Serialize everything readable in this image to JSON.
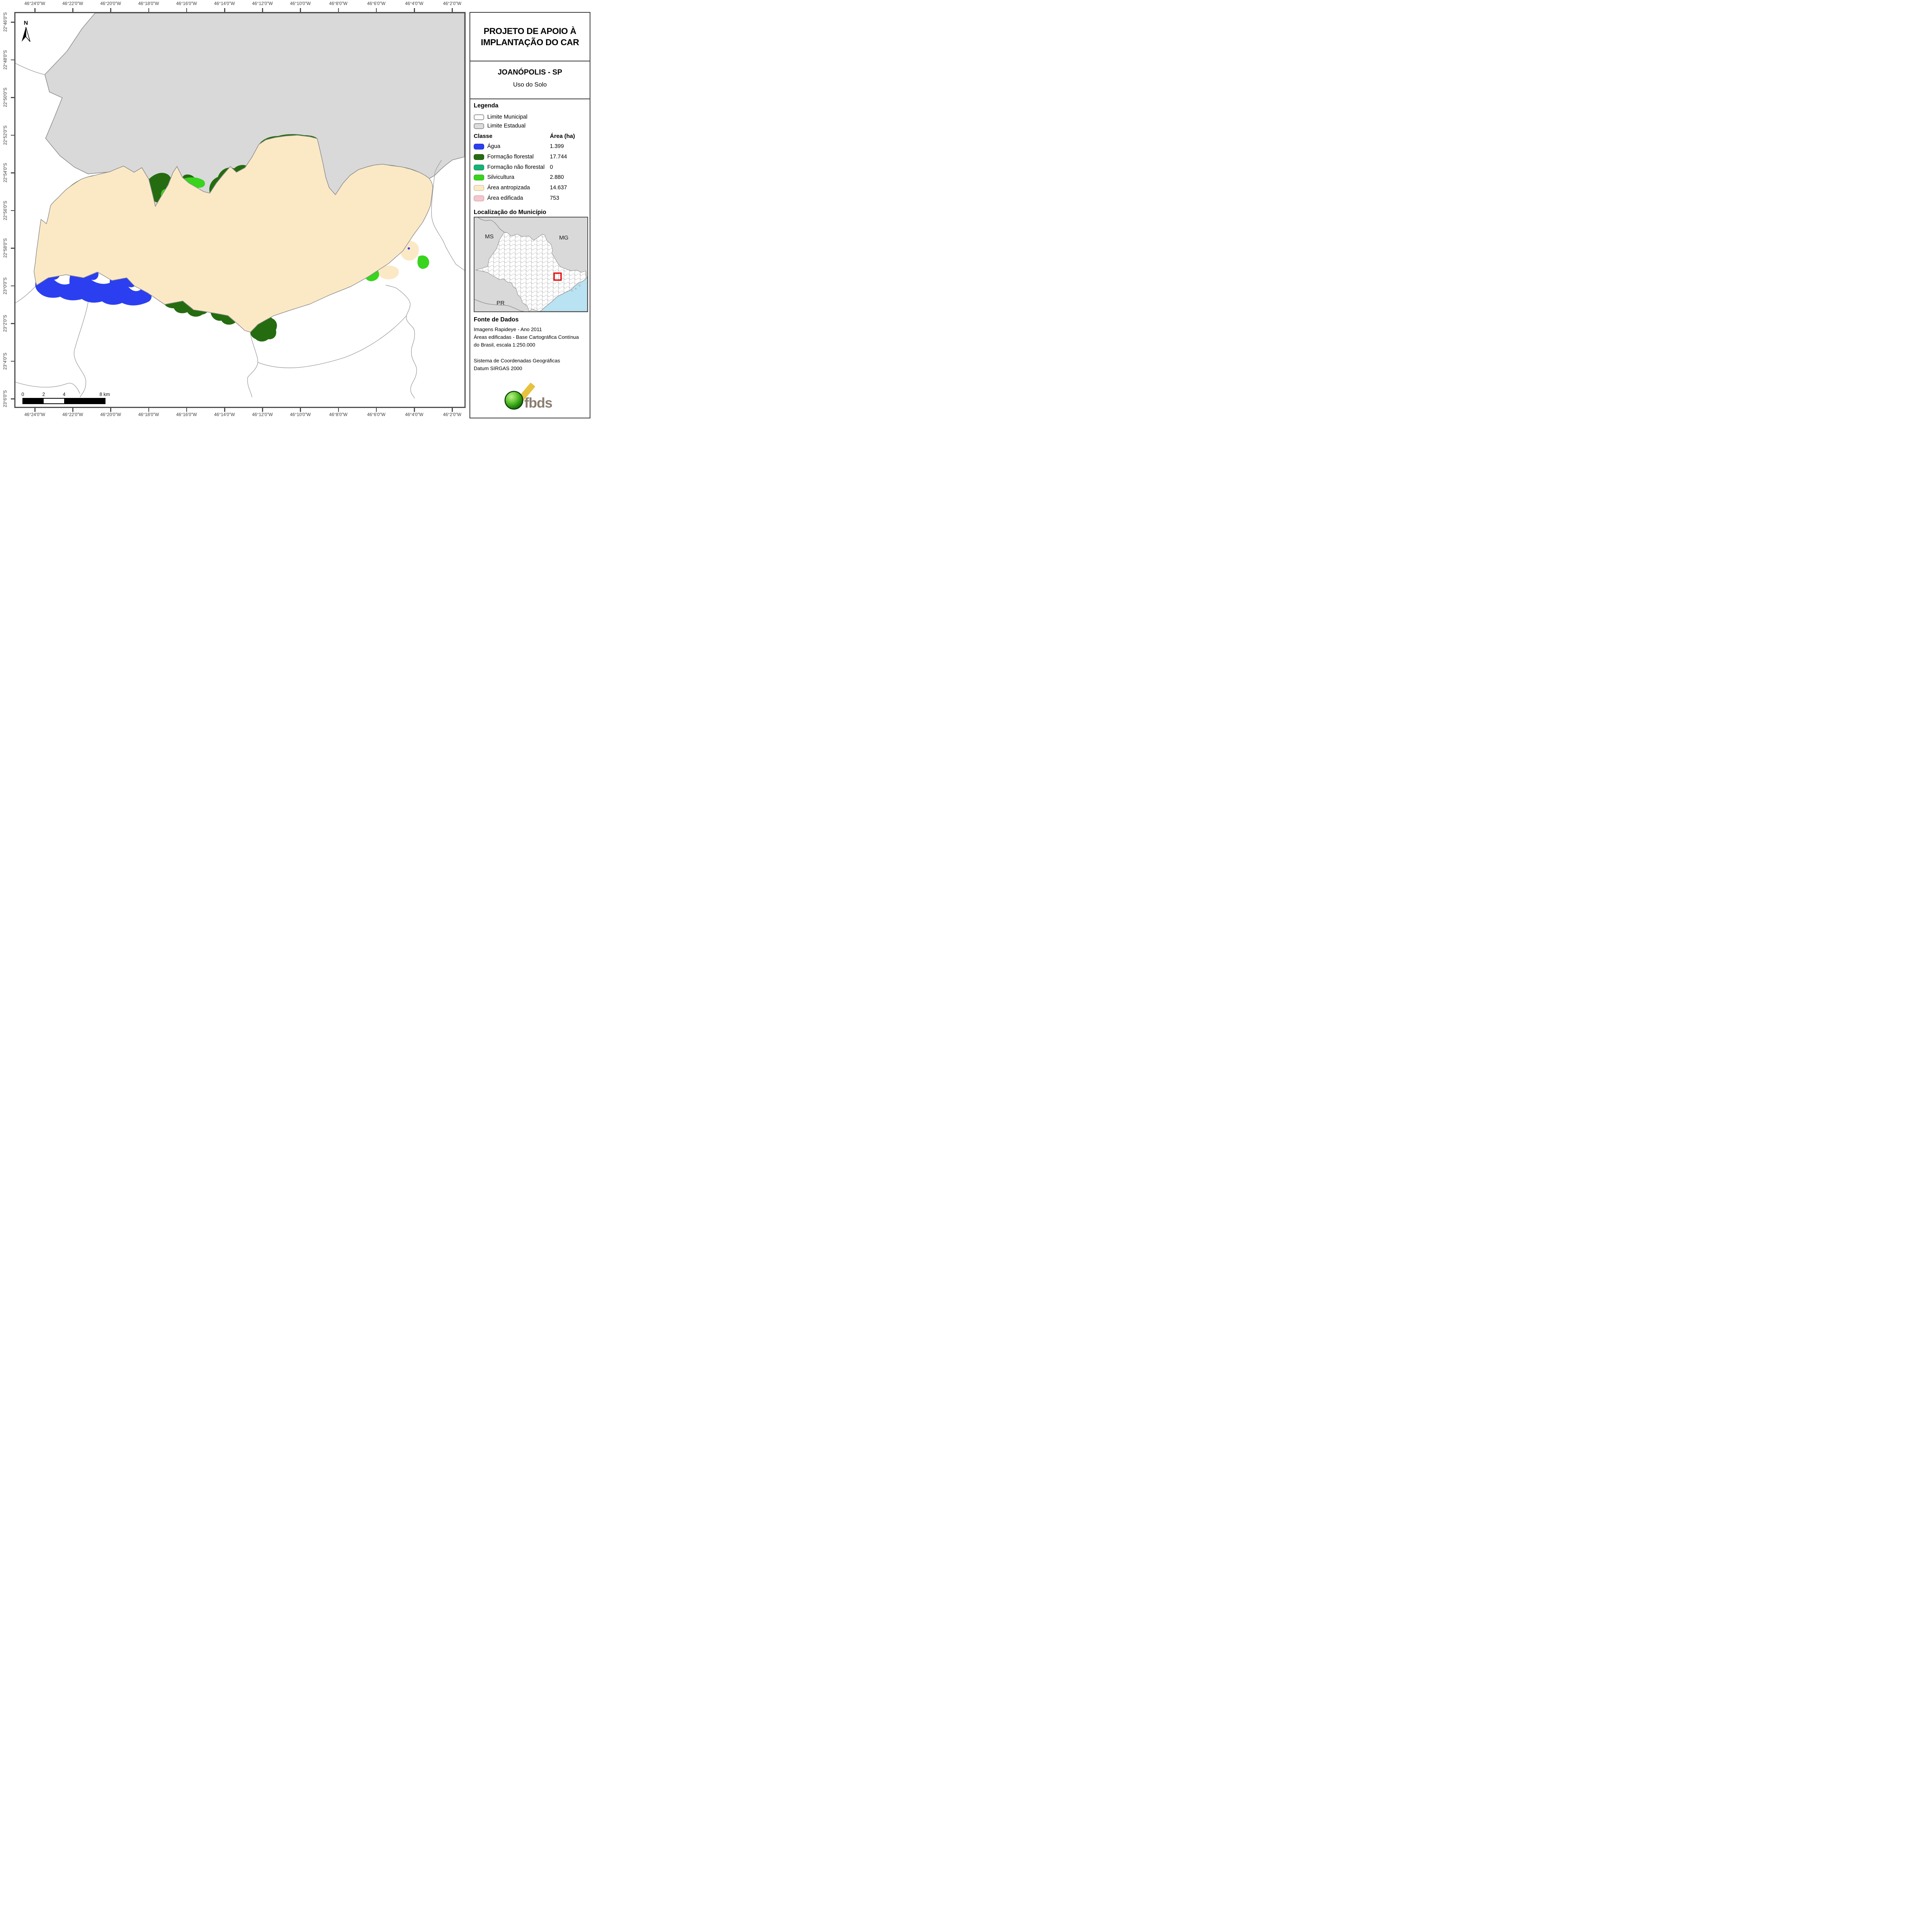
{
  "title_panel": {
    "line1": "PROJETO DE APOIO À",
    "line2": "IMPLANTAÇÃO DO CAR"
  },
  "subtitle_panel": {
    "municipality": "JOANÓPOLIS - SP",
    "map_type": "Uso do Solo"
  },
  "legend": {
    "heading": "Legenda",
    "boundaries": [
      {
        "label": "Limite Municipal",
        "fill": "#ffffff",
        "border": "#9a9a9a"
      },
      {
        "label": "Limite Estadual",
        "fill": "#dcdcdc",
        "border": "#9a9a9a"
      }
    ],
    "table": {
      "class_header": "Classe",
      "area_header": "Área (ha)",
      "rows": [
        {
          "label": "Água",
          "color_key": "agua",
          "area": "1.399"
        },
        {
          "label": "Formação florestal",
          "color_key": "florestal",
          "area": "17.744"
        },
        {
          "label": "Formação não florestal",
          "color_key": "nao_florestal",
          "area": "0"
        },
        {
          "label": "Silvicultura",
          "color_key": "silvicultura",
          "area": "2.880"
        },
        {
          "label": "Área antropizada",
          "color_key": "antropizada",
          "area": "14.637"
        },
        {
          "label": "Área edificada",
          "color_key": "edificada",
          "area": "753"
        }
      ]
    }
  },
  "locator": {
    "heading": "Localização do Município",
    "labels": [
      "MS",
      "MG",
      "PR"
    ]
  },
  "fonte": {
    "heading": "Fonte de Dados",
    "lines": [
      "Imagens Rapideye - Ano 2011",
      "Áreas edificadas - Base Cartográfica Contínua",
      "do Brasil, escala 1:250.000",
      "Sistema de Coordenadas Geográficas",
      "Datum SIRGAS 2000"
    ]
  },
  "logo": {
    "text": "fbds"
  },
  "map": {
    "north_label": "N",
    "top_axis": [
      "46°24'0\"W",
      "46°22'0\"W",
      "46°20'0\"W",
      "46°18'0\"W",
      "46°16'0\"W",
      "46°14'0\"W",
      "46°12'0\"W",
      "46°10'0\"W",
      "46°8'0\"W",
      "46°6'0\"W",
      "46°4'0\"W",
      "46°2'0\"W"
    ],
    "bottom_axis": [
      "46°24'0\"W",
      "46°22'0\"W",
      "46°20'0\"W",
      "46°18'0\"W",
      "46°16'0\"W",
      "46°14'0\"W",
      "46°12'0\"W",
      "46°10'0\"W",
      "46°8'0\"W",
      "46°6'0\"W",
      "46°4'0\"W",
      "46°2'0\"W"
    ],
    "left_axis": [
      "22°46'0\"S",
      "22°48'0\"S",
      "22°50'0\"S",
      "22°52'0\"S",
      "22°54'0\"S",
      "22°56'0\"S",
      "22°58'0\"S",
      "23°0'0\"S",
      "23°2'0\"S",
      "23°4'0\"S",
      "23°6'0\"S"
    ],
    "scalebar": {
      "labels": [
        "0",
        "2",
        "4",
        "8 km"
      ]
    },
    "colors": {
      "agua": "#2b3ff0",
      "florestal": "#256c11",
      "nao_florestal": "#17b275",
      "silvicultura": "#38d41e",
      "antropizada": "#fbe9c6",
      "edificada": "#f6c6cc",
      "estadual": "#d9d9d9",
      "limite_linha": "#8f8f8f",
      "linha_municipios": "#9a9a9a",
      "moldura": "#4e4e4e",
      "oceano": "#b9e2f2",
      "destaque": "#e80c0c"
    }
  }
}
